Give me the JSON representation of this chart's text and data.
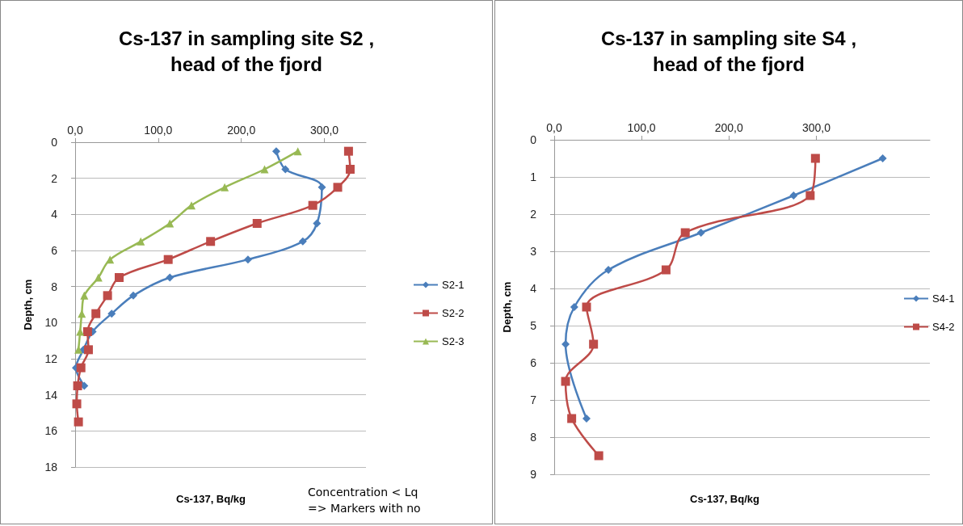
{
  "chart_data": [
    {
      "type": "line",
      "title": "Cs-137 in sampling site S2 ,\nhead of the fjord",
      "xlabel": "Cs-137, Bq/kg",
      "ylabel": "Depth, cm",
      "xlim": [
        0,
        350
      ],
      "xticks": [
        {
          "value": 0,
          "label": "0,0"
        },
        {
          "value": 100,
          "label": "100,0"
        },
        {
          "value": 200,
          "label": "200,0"
        },
        {
          "value": 300,
          "label": "300,0"
        }
      ],
      "ylim": [
        18,
        0
      ],
      "yticks": [
        0,
        2,
        4,
        6,
        8,
        10,
        12,
        14,
        16,
        18
      ],
      "grid": "y",
      "legend": "right",
      "annotations": [
        "Concentration < Lq\n=> Markers with no"
      ],
      "series": [
        {
          "name": "S2-1",
          "color": "#4a7ebb",
          "marker": "diamond",
          "x": [
            242,
            253,
            297,
            null,
            291,
            274,
            208,
            114,
            70,
            44,
            21,
            10,
            1,
            11
          ],
          "values": [
            0.5,
            1.5,
            2.5,
            null,
            4.5,
            5.5,
            6.5,
            7.5,
            8.5,
            9.5,
            10.5,
            11.5,
            12.5,
            13.5
          ]
        },
        {
          "name": "S2-2",
          "color": "#be4b48",
          "marker": "square",
          "x": [
            329,
            331,
            316,
            286,
            219,
            163,
            112,
            53,
            39,
            25,
            15,
            16,
            7,
            3,
            2,
            4
          ],
          "values": [
            0.5,
            1.5,
            2.5,
            3.5,
            4.5,
            5.5,
            6.5,
            7.5,
            8.5,
            9.5,
            10.5,
            11.5,
            12.5,
            13.5,
            14.5,
            15.5
          ]
        },
        {
          "name": "S2-3",
          "color": "#98b954",
          "marker": "triangle",
          "x": [
            268,
            228,
            180,
            140,
            114,
            79,
            42,
            28,
            11,
            8,
            6,
            4
          ],
          "values": [
            0.5,
            1.5,
            2.5,
            3.5,
            4.5,
            5.5,
            6.5,
            7.5,
            8.5,
            9.5,
            10.5,
            11.5
          ]
        }
      ]
    },
    {
      "type": "line",
      "title": "Cs-137 in sampling site S4 ,\nhead of the fjord",
      "xlabel": "Cs-137, Bq/kg",
      "ylabel": "Depth, cm",
      "xlim": [
        0,
        430
      ],
      "xticks": [
        {
          "value": 0,
          "label": "0,0"
        },
        {
          "value": 100,
          "label": "100,0"
        },
        {
          "value": 200,
          "label": "200,0"
        },
        {
          "value": 300,
          "label": "300,0"
        }
      ],
      "ylim": [
        9,
        0
      ],
      "yticks": [
        0,
        1,
        2,
        3,
        4,
        5,
        6,
        7,
        8,
        9
      ],
      "grid": "y",
      "legend": "right",
      "series": [
        {
          "name": "S4-1",
          "color": "#4a7ebb",
          "marker": "diamond",
          "x": [
            376,
            274,
            168,
            62,
            23,
            13,
            null,
            37
          ],
          "values": [
            0.5,
            1.5,
            2.5,
            3.5,
            4.5,
            5.5,
            null,
            7.5
          ]
        },
        {
          "name": "S4-2",
          "color": "#be4b48",
          "marker": "square",
          "x": [
            299,
            293,
            150,
            128,
            37,
            45,
            13,
            20,
            51
          ],
          "values": [
            0.5,
            1.5,
            2.5,
            3.5,
            4.5,
            5.5,
            6.5,
            7.5,
            8.5
          ]
        }
      ]
    }
  ]
}
